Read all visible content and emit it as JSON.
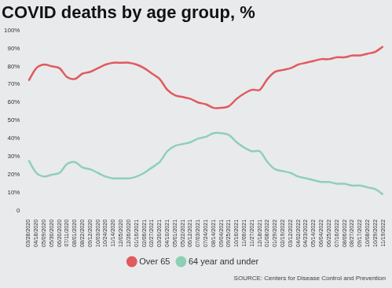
{
  "chart_data": {
    "type": "line",
    "title": "COVID deaths by age group, %",
    "annotations": [
      "SOURCE: Centers for Disease Control and Prevention"
    ],
    "categories": [
      "03/28/2020",
      "04/18/2020",
      "05/09/2020",
      "05/30/2020",
      "06/20/2020",
      "07/11/2020",
      "08/01/2020",
      "08/22/2020",
      "09/12/2020",
      "10/03/2020",
      "10/24/2020",
      "11/14/2020",
      "12/05/2020",
      "12/26/2020",
      "01/16/2021",
      "02/06/2021",
      "02/27/2021",
      "03/20/2021",
      "04/10/2021",
      "05/01/2021",
      "05/22/2021",
      "06/12/2021",
      "07/03/2021",
      "07/24/2021",
      "08/14/2021",
      "09/04/2021",
      "09/25/2021",
      "10/16/2021",
      "11/06/2021",
      "11/27/2021",
      "12/18/2021",
      "01/08/2022",
      "01/29/2022",
      "02/19/2022",
      "03/12/2022",
      "04/02/2022",
      "04/23/2022",
      "05/14/2022",
      "06/04/2022",
      "06/25/2022",
      "07/16/2022",
      "08/06/2022",
      "08/27/2022",
      "09/17/2022",
      "10/08/2022",
      "10/29/2022",
      "11/19/2022"
    ],
    "series": [
      {
        "name": "Over 65",
        "color": "#e05a5e",
        "values": [
          72,
          79,
          81,
          80,
          79,
          74,
          73,
          76,
          77,
          79,
          81,
          82,
          82,
          82,
          81,
          79,
          76,
          73,
          67,
          64,
          63,
          62,
          60,
          59,
          57,
          57,
          58,
          62,
          65,
          67,
          67,
          73,
          77,
          78,
          79,
          81,
          82,
          83,
          84,
          84,
          85,
          85,
          86,
          86,
          87,
          88,
          91
        ]
      },
      {
        "name": "64 year and under",
        "color": "#8ed0b6",
        "values": [
          28,
          21,
          19,
          20,
          21,
          26,
          27,
          24,
          23,
          21,
          19,
          18,
          18,
          18,
          19,
          21,
          24,
          27,
          33,
          36,
          37,
          38,
          40,
          41,
          43,
          43,
          42,
          38,
          35,
          33,
          33,
          27,
          23,
          22,
          21,
          19,
          18,
          17,
          16,
          16,
          15,
          15,
          14,
          14,
          13,
          12,
          9
        ]
      }
    ],
    "ylim": [
      0,
      100
    ],
    "yticks": [
      0,
      {
        "value": 10,
        "label": "10%"
      },
      {
        "value": 20,
        "label": "20%"
      },
      {
        "value": 30,
        "label": "30%"
      },
      {
        "value": 40,
        "label": "40%"
      },
      {
        "value": 50,
        "label": "50%"
      },
      {
        "value": 60,
        "label": "60%"
      },
      {
        "value": 70,
        "label": "70%"
      },
      {
        "value": 80,
        "label": "80%"
      },
      {
        "value": 90,
        "label": "90%"
      },
      {
        "value": 100,
        "label": "100%"
      }
    ],
    "grid": false,
    "legend": "bottom"
  }
}
